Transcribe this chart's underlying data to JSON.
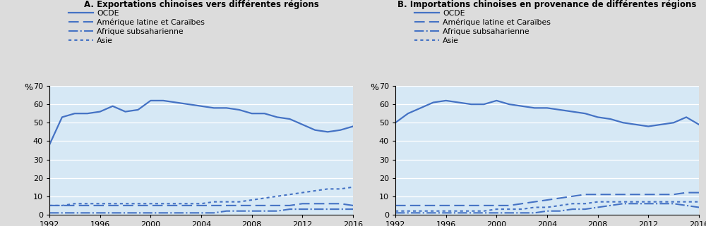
{
  "years": [
    1992,
    1993,
    1994,
    1995,
    1996,
    1997,
    1998,
    1999,
    2000,
    2001,
    2002,
    2003,
    2004,
    2005,
    2006,
    2007,
    2008,
    2009,
    2010,
    2011,
    2012,
    2013,
    2014,
    2015,
    2016
  ],
  "panel_A": {
    "title": "A. Exportations chinoises vers différentes régions",
    "OCDE": [
      38,
      53,
      55,
      55,
      56,
      59,
      56,
      57,
      62,
      62,
      61,
      60,
      59,
      58,
      58,
      57,
      55,
      55,
      53,
      52,
      49,
      46,
      45,
      46,
      48
    ],
    "Amerique_latine": [
      5,
      5,
      5,
      5,
      5,
      5,
      5,
      5,
      5,
      5,
      5,
      5,
      5,
      5,
      5,
      5,
      5,
      5,
      5,
      5,
      6,
      6,
      6,
      6,
      5
    ],
    "Afrique_subsaharienne": [
      1,
      1,
      1,
      1,
      1,
      1,
      1,
      1,
      1,
      1,
      1,
      1,
      1,
      1,
      2,
      2,
      2,
      2,
      2,
      3,
      3,
      3,
      3,
      3,
      3
    ],
    "Asie": [
      5,
      5,
      6,
      6,
      6,
      6,
      6,
      6,
      6,
      6,
      6,
      6,
      6,
      7,
      7,
      7,
      8,
      9,
      10,
      11,
      12,
      13,
      14,
      14,
      15
    ]
  },
  "panel_B": {
    "title": "B. Importations chinoises en provenance de différentes régions",
    "OCDE": [
      50,
      55,
      58,
      61,
      62,
      61,
      60,
      60,
      62,
      60,
      59,
      58,
      58,
      57,
      56,
      55,
      53,
      52,
      50,
      49,
      48,
      49,
      50,
      53,
      49
    ],
    "Amerique_latine": [
      5,
      5,
      5,
      5,
      5,
      5,
      5,
      5,
      5,
      5,
      6,
      7,
      8,
      9,
      10,
      11,
      11,
      11,
      11,
      11,
      11,
      11,
      11,
      12,
      12
    ],
    "Afrique_subsaharienne": [
      1,
      1,
      1,
      1,
      1,
      1,
      1,
      1,
      1,
      1,
      1,
      1,
      2,
      2,
      3,
      3,
      4,
      5,
      6,
      6,
      6,
      6,
      6,
      5,
      4
    ],
    "Asie": [
      2,
      2,
      2,
      2,
      2,
      2,
      2,
      2,
      3,
      3,
      3,
      4,
      4,
      5,
      6,
      6,
      7,
      7,
      7,
      7,
      7,
      7,
      7,
      7,
      7
    ]
  },
  "legend_labels": [
    "OCDE",
    "Amérique latine et Caraïbes",
    "Afrique subsaharienne",
    "Asie"
  ],
  "line_color": "#4472C4",
  "background_color": "#DCDCDC",
  "plot_background": "#D6E8F5",
  "ylabel": "%",
  "ylim": [
    0,
    70
  ],
  "yticks": [
    0,
    10,
    20,
    30,
    40,
    50,
    60,
    70
  ],
  "xlim": [
    1992,
    2016
  ],
  "xticks": [
    1992,
    1996,
    2000,
    2004,
    2008,
    2012,
    2016
  ],
  "title_fontsize": 8.5,
  "legend_fontsize": 7.8,
  "tick_fontsize": 8
}
